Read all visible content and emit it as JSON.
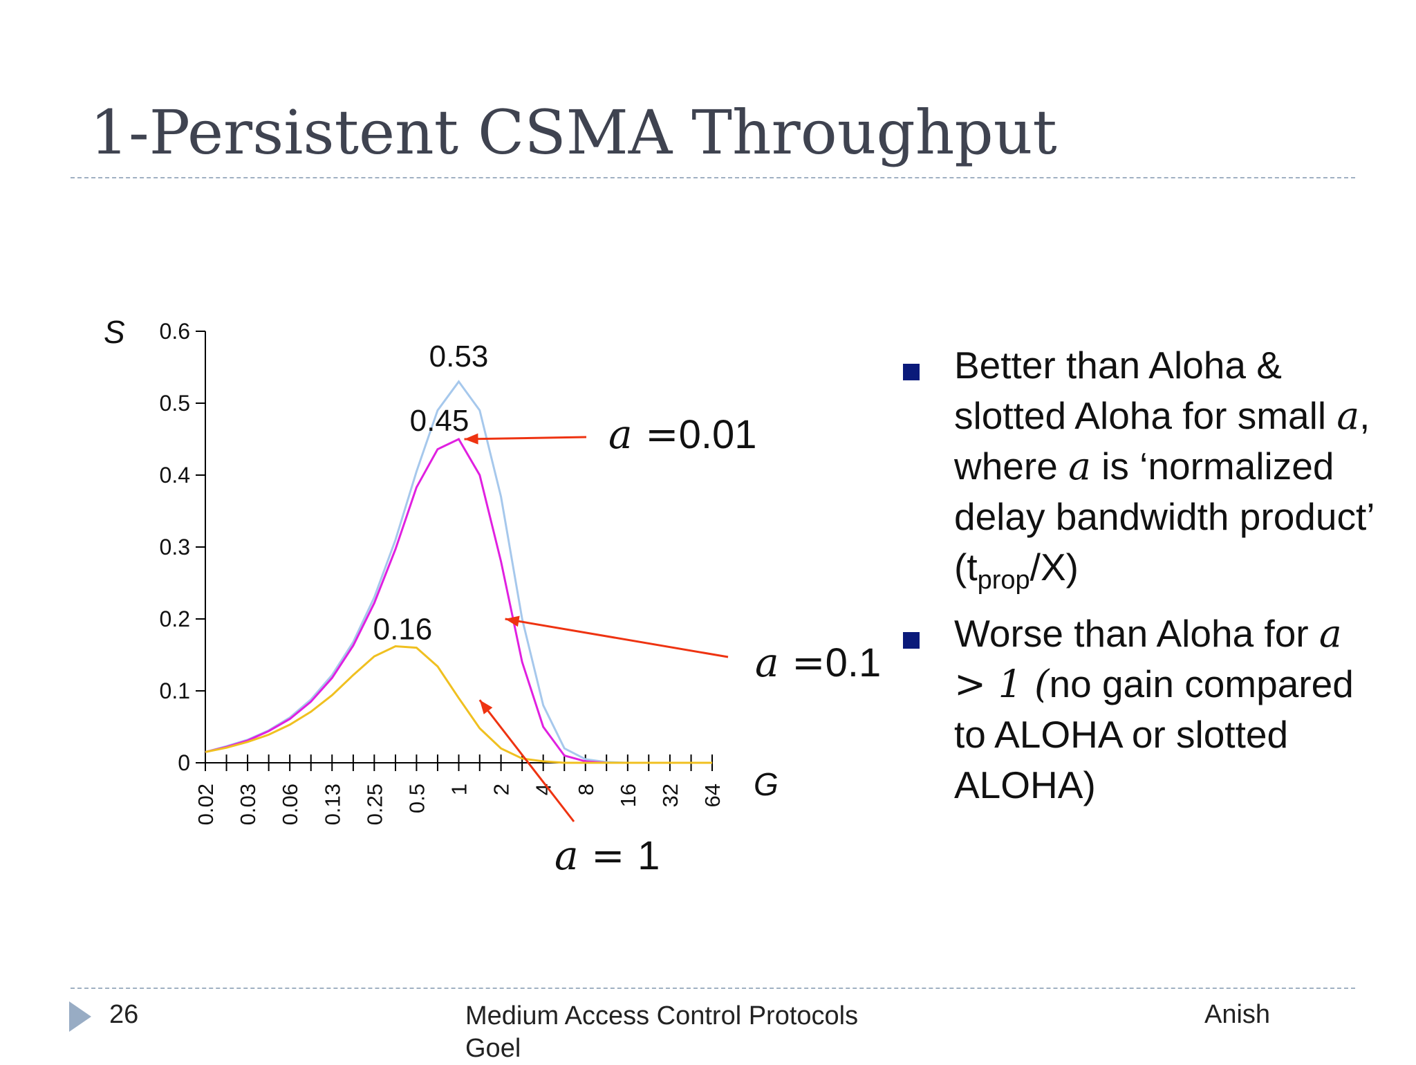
{
  "slide": {
    "title": "1-Persistent CSMA Throughput",
    "footer": {
      "page_number": "26",
      "center_text": "Medium Access Control Protocols Goel",
      "author": "Anish"
    }
  },
  "bullets": {
    "item1": {
      "t1": "Better than Aloha & slotted Aloha for small ",
      "var1": "a",
      "t2": ", where ",
      "var2": "a",
      "t3": " is ‘normalized delay bandwidth product’ (t",
      "sub": "prop",
      "t4": "/X)"
    },
    "item2": {
      "t1": "Worse than Aloha for ",
      "math": "a > 1 (",
      "t2": "no gain compared to ALOHA or slotted ALOHA)"
    }
  },
  "chart_data": {
    "type": "line",
    "xlabel": "G",
    "ylabel": "S",
    "ylim": [
      0,
      0.6
    ],
    "y_ticks": [
      "0",
      "0.1",
      "0.2",
      "0.3",
      "0.4",
      "0.5",
      "0.6"
    ],
    "x_tick_labels": [
      "0.02",
      "0.03",
      "0.06",
      "0.13",
      "0.25",
      "0.5",
      "1",
      "2",
      "4",
      "8",
      "16",
      "32",
      "64"
    ],
    "x_scale": "log2",
    "grid": false,
    "x": [
      0.015625,
      0.0221,
      0.03125,
      0.0442,
      0.0625,
      0.0884,
      0.125,
      0.177,
      0.25,
      0.354,
      0.5,
      0.707,
      1,
      1.41,
      2,
      2.83,
      4,
      5.66,
      8,
      11.3,
      16,
      22.6,
      32,
      45.3,
      64
    ],
    "series": [
      {
        "color": "#a6c8ec",
        "values": [
          0.015,
          0.023,
          0.032,
          0.045,
          0.063,
          0.088,
          0.122,
          0.168,
          0.23,
          0.31,
          0.405,
          0.49,
          0.53,
          0.49,
          0.37,
          0.2,
          0.08,
          0.02,
          0.005,
          0.001,
          0,
          0,
          0,
          0,
          0
        ]
      },
      {
        "color": "#e020e0",
        "values": [
          0.015,
          0.022,
          0.031,
          0.044,
          0.061,
          0.085,
          0.118,
          0.163,
          0.222,
          0.297,
          0.383,
          0.436,
          0.45,
          0.4,
          0.28,
          0.14,
          0.05,
          0.01,
          0.002,
          0,
          0,
          0,
          0,
          0,
          0
        ]
      },
      {
        "color": "#f0c020",
        "values": [
          0.015,
          0.021,
          0.029,
          0.039,
          0.053,
          0.071,
          0.094,
          0.122,
          0.148,
          0.162,
          0.16,
          0.134,
          0.09,
          0.048,
          0.02,
          0.006,
          0.002,
          0,
          0,
          0,
          0,
          0,
          0,
          0,
          0
        ]
      }
    ],
    "annotations": [
      {
        "text": "0.53",
        "x": 1,
        "y": 0.53
      },
      {
        "text": "0.45",
        "x": 1,
        "y": 0.45
      },
      {
        "text": "0.16",
        "x": 0.5,
        "y": 0.16
      }
    ],
    "series_labels": [
      {
        "var": "a",
        "eq": " =",
        "val": "0.01",
        "points_to": {
          "x": 1,
          "y": 0.45
        }
      },
      {
        "var": "a",
        "eq": " =",
        "val": "0.1",
        "points_to": {
          "x": 2,
          "y": 0.2
        }
      },
      {
        "var": "a",
        "eq": " = ",
        "val": "1",
        "points_to": {
          "x": 1.41,
          "y": 0.07
        }
      }
    ]
  }
}
